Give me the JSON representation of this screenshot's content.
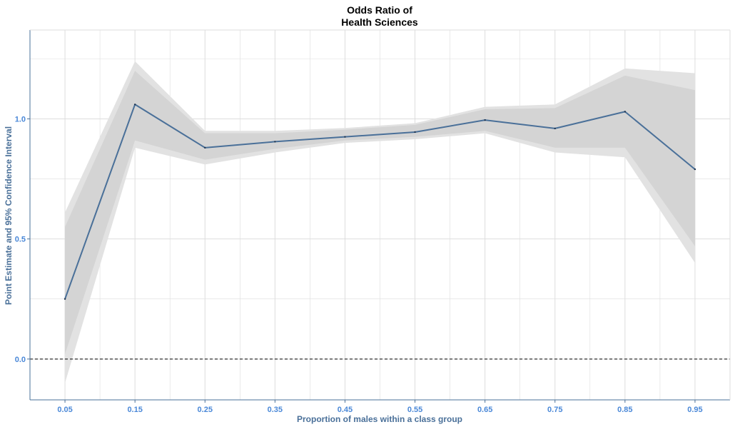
{
  "chart_data": {
    "type": "line",
    "title_line1": "Odds Ratio of",
    "title_line2": "Health Sciences",
    "xlabel": "Proportion of males within a class group",
    "ylabel": "Point Estimate and 95% Confidence Interval",
    "x": [
      0.05,
      0.15,
      0.25,
      0.35,
      0.45,
      0.55,
      0.65,
      0.75,
      0.85,
      0.95
    ],
    "x_tick_labels": [
      "0.05",
      "0.15",
      "0.25",
      "0.35",
      "0.45",
      "0.55",
      "0.65",
      "0.75",
      "0.85",
      "0.95"
    ],
    "y_ticks": [
      0.0,
      0.5,
      1.0
    ],
    "y_tick_labels": [
      "0.0",
      "0.5",
      "1.0"
    ],
    "xlim": [
      0.0,
      1.0
    ],
    "ylim": [
      -0.17,
      1.37
    ],
    "grid": true,
    "reference_line": {
      "y": 0.0,
      "style": "dashed"
    },
    "series": [
      {
        "values": [
          0.25,
          1.06,
          0.88,
          0.905,
          0.925,
          0.945,
          0.995,
          0.96,
          1.03,
          0.79
        ],
        "band_outer": {
          "lower": [
            -0.1,
            0.88,
            0.81,
            0.86,
            0.9,
            0.915,
            0.94,
            0.86,
            0.84,
            0.4
          ],
          "upper": [
            0.61,
            1.24,
            0.95,
            0.95,
            0.962,
            0.982,
            1.05,
            1.06,
            1.21,
            1.19
          ]
        },
        "band_inner": {
          "lower": [
            0.02,
            0.91,
            0.83,
            0.875,
            0.91,
            0.925,
            0.95,
            0.88,
            0.88,
            0.47
          ],
          "upper": [
            0.55,
            1.2,
            0.94,
            0.94,
            0.955,
            0.975,
            1.04,
            1.045,
            1.18,
            1.12
          ]
        }
      }
    ],
    "colors": {
      "line": "#4a7099",
      "band_outer": "#e2e2e2",
      "band_inner": "#d4d4d4",
      "grid": "#dddddd",
      "panel_border": "#4a7099",
      "axis_text": "#4a88d8",
      "axis_title": "#4a7099",
      "ref_line": "#000000"
    }
  }
}
